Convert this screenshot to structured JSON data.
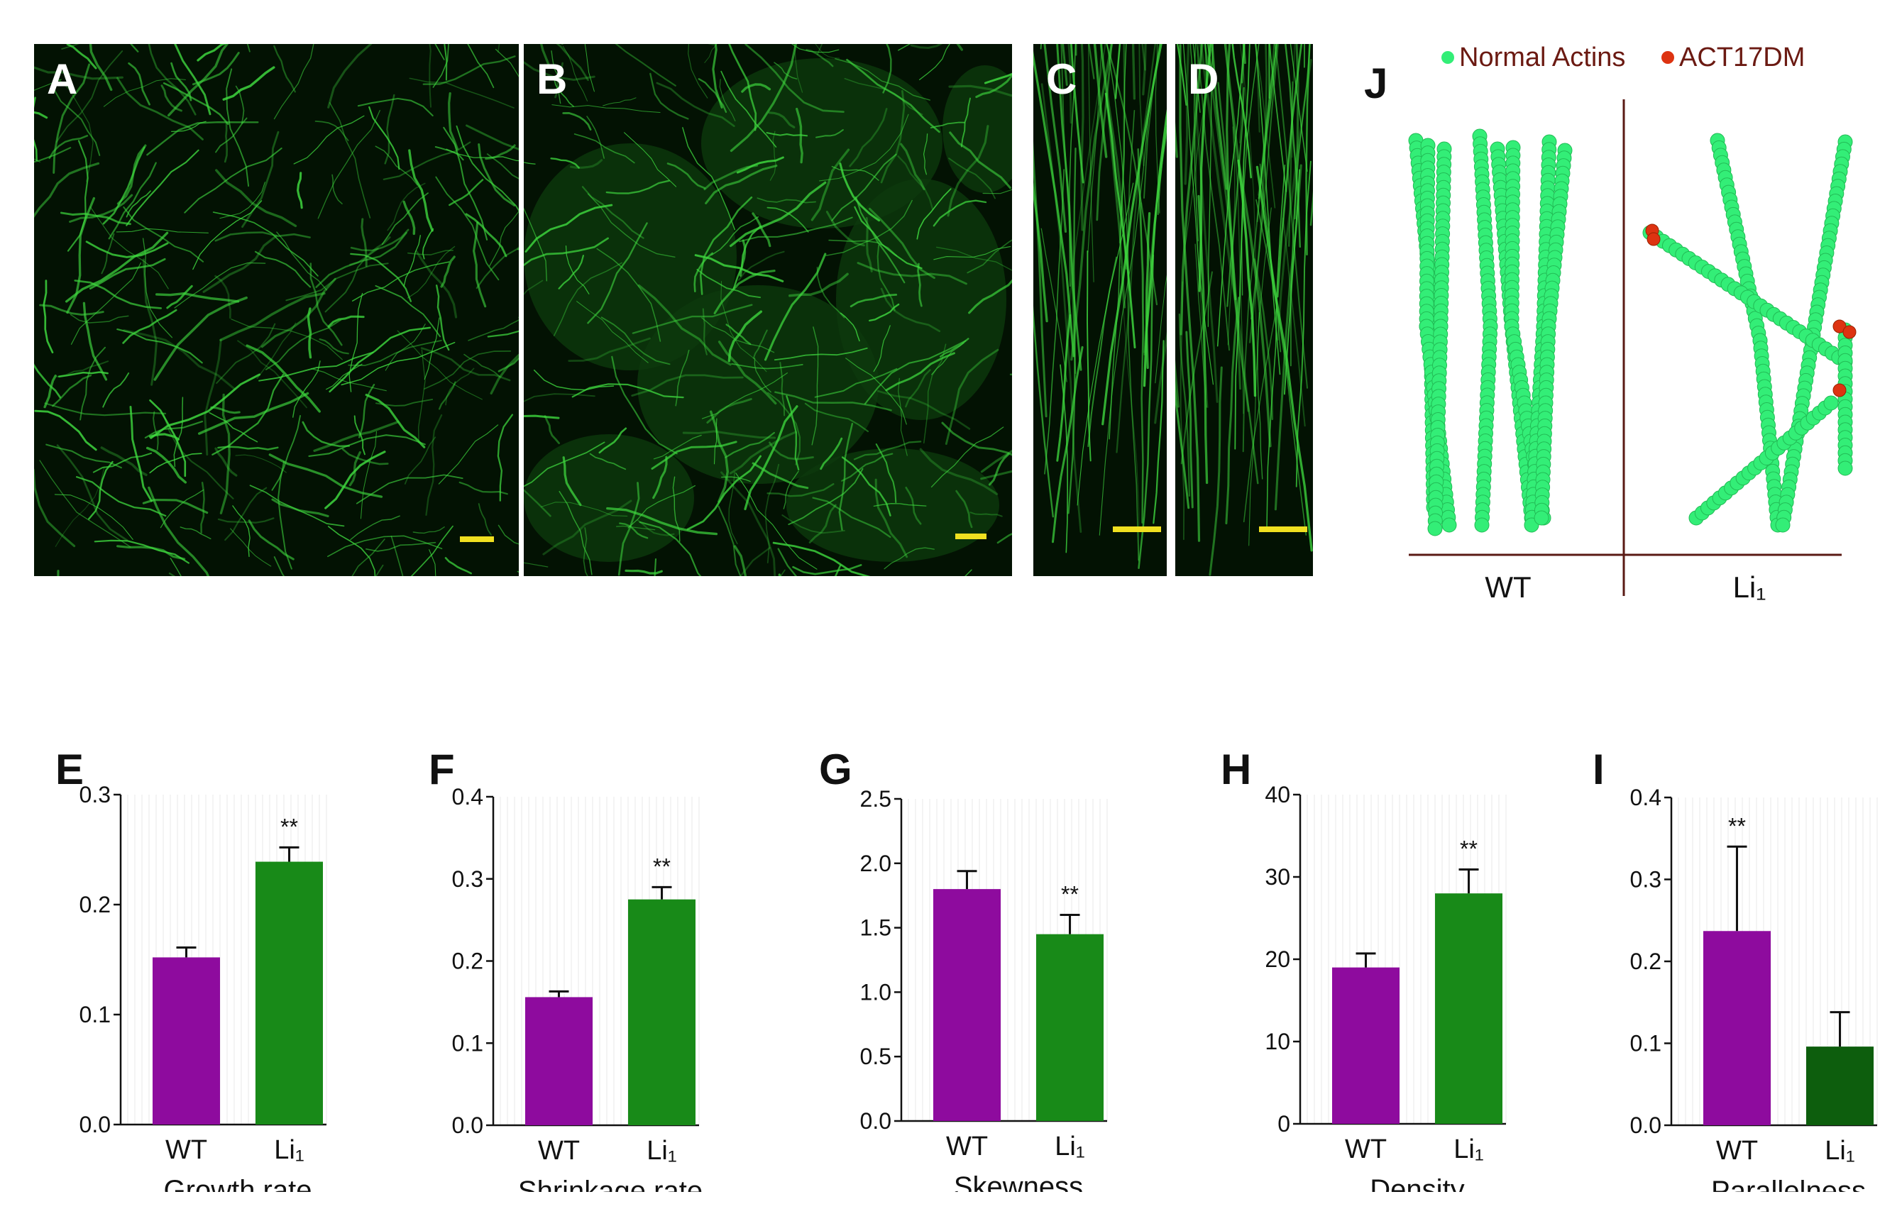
{
  "image_panels": [
    {
      "label": "A"
    },
    {
      "label": "B"
    },
    {
      "label": "C"
    },
    {
      "label": "D"
    }
  ],
  "colors": {
    "wt_bar": "#8e0b9e",
    "li1_bar": "#188a18",
    "li1_bar_dark": "#0d5e0d",
    "normal_actin": "#33ee77",
    "mutant_actin": "#dd3311",
    "model_axis": "#5a1a14",
    "legend_text": "#6b1a12",
    "scale_bar": "#f0e020",
    "fluorescence": "#3fd93f"
  },
  "model": {
    "label": "J",
    "legend": [
      "Normal Actins",
      "ACT17DM"
    ],
    "groups": [
      "WT",
      "Li₁"
    ]
  },
  "chart_data": [
    {
      "label": "E",
      "type": "bar",
      "categories": [
        "WT",
        "Li₁"
      ],
      "values": [
        0.152,
        0.239
      ],
      "errors": [
        0.009,
        0.013
      ],
      "xlabel": "Growth rate",
      "ylim": [
        0,
        0.3
      ],
      "yticks": [
        "0.0",
        "0.1",
        "0.2",
        "0.3"
      ],
      "significance": [
        "",
        "**"
      ],
      "bar_colors": [
        "wt_bar",
        "li1_bar"
      ]
    },
    {
      "label": "F",
      "type": "bar",
      "categories": [
        "WT",
        "Li₁"
      ],
      "values": [
        0.156,
        0.275
      ],
      "errors": [
        0.007,
        0.015
      ],
      "xlabel": "Shrinkage rate",
      "ylim": [
        0,
        0.4
      ],
      "yticks": [
        "0.0",
        "0.1",
        "0.2",
        "0.3",
        "0.4"
      ],
      "significance": [
        "",
        "**"
      ],
      "bar_colors": [
        "wt_bar",
        "li1_bar"
      ]
    },
    {
      "label": "G",
      "type": "bar",
      "categories": [
        "WT",
        "Li₁"
      ],
      "values": [
        1.8,
        1.45
      ],
      "errors": [
        0.14,
        0.15
      ],
      "xlabel": "Skewness",
      "ylim": [
        0,
        2.5
      ],
      "yticks": [
        "0.0",
        "0.5",
        "1.0",
        "1.5",
        "2.0",
        "2.5"
      ],
      "significance": [
        "",
        "**"
      ],
      "bar_colors": [
        "wt_bar",
        "li1_bar"
      ]
    },
    {
      "label": "H",
      "type": "bar",
      "categories": [
        "WT",
        "Li₁"
      ],
      "values": [
        19,
        28
      ],
      "errors": [
        1.7,
        2.9
      ],
      "xlabel": "Density",
      "ylim": [
        0,
        40
      ],
      "yticks": [
        "0",
        "10",
        "20",
        "30",
        "40"
      ],
      "significance": [
        "",
        "**"
      ],
      "bar_colors": [
        "wt_bar",
        "li1_bar"
      ]
    },
    {
      "label": "I",
      "type": "bar",
      "categories": [
        "WT",
        "Li₁"
      ],
      "values": [
        0.237,
        0.096
      ],
      "errors": [
        0.103,
        0.042
      ],
      "xlabel": "Parallelness",
      "ylim": [
        0,
        0.4
      ],
      "yticks": [
        "0.0",
        "0.1",
        "0.2",
        "0.3",
        "0.4"
      ],
      "significance": [
        "**",
        ""
      ],
      "bar_colors": [
        "wt_bar",
        "li1_bar_dark"
      ]
    }
  ]
}
